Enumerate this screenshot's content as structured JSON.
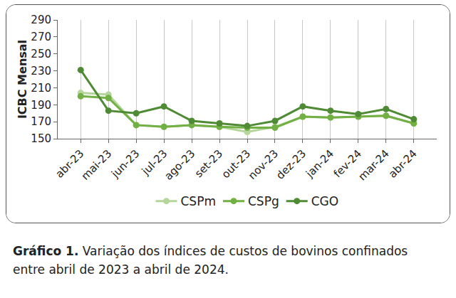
{
  "chart_data": {
    "type": "line",
    "y_label": "ICBC Mensal",
    "categories": [
      "abr-23",
      "mai-23",
      "jun-23",
      "jul-23",
      "ago-23",
      "set-23",
      "out-23",
      "nov-23",
      "dez-23",
      "jan-24",
      "fev-24",
      "mar-24",
      "abr-24"
    ],
    "series": [
      {
        "name": "CSPm",
        "color": "#b4d69c",
        "values": [
          204,
          202,
          166,
          164,
          166,
          164,
          158,
          164,
          176,
          175,
          176,
          177,
          168
        ]
      },
      {
        "name": "CSPg",
        "color": "#72b043",
        "values": [
          200,
          198,
          166,
          164,
          166,
          164,
          163,
          163,
          176,
          175,
          176,
          177,
          168
        ]
      },
      {
        "name": "CGO",
        "color": "#4f8a34",
        "values": [
          231,
          183,
          180,
          188,
          171,
          168,
          165,
          171,
          188,
          183,
          179,
          185,
          173
        ]
      }
    ],
    "ylim": [
      150,
      290
    ],
    "yticks": [
      150,
      170,
      190,
      210,
      230,
      250,
      270,
      290
    ],
    "grid": true,
    "legend": "bottom",
    "marker": "circle"
  },
  "caption": {
    "label": "Gráfico 1.",
    "text": "Variação dos índices de custos de bovinos confinados entre abril de 2023 a abril de 2024."
  }
}
